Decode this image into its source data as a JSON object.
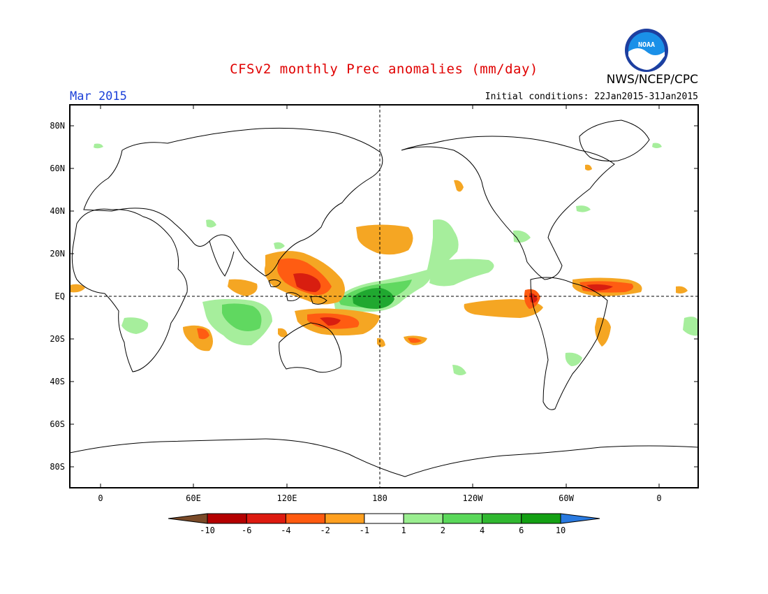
{
  "header": {
    "title": "CFSv2 monthly Prec anomalies (mm/day)",
    "agency": "NWS/NCEP/CPC",
    "logo_text": "NOAA",
    "valid_month": "Mar 2015",
    "initial_conditions": "Initial conditions: 22Jan2015-31Jan2015"
  },
  "map": {
    "lat_ticks": [
      "80N",
      "60N",
      "40N",
      "20N",
      "EQ",
      "20S",
      "40S",
      "60S",
      "80S"
    ],
    "lon_ticks": [
      "0",
      "60E",
      "120E",
      "180",
      "120W",
      "60W",
      "0"
    ],
    "reference_lines": [
      "EQ",
      "180"
    ]
  },
  "colorbar": {
    "labels": [
      "-10",
      "-6",
      "-4",
      "-2",
      "-1",
      "1",
      "2",
      "4",
      "6",
      "10"
    ],
    "colors": [
      "#7a4a28",
      "#b40000",
      "#dd1a10",
      "#ff5a10",
      "#ffa020",
      "#ffffff",
      "#9aee90",
      "#5ad85a",
      "#30b830",
      "#14a014",
      "#2a7ae0"
    ]
  },
  "anomaly_colors": {
    "dry_weak": "#f5a623",
    "dry_mod": "#ff5c12",
    "dry_strong": "#d81e10",
    "wet_weak": "#a6ee9c",
    "wet_mod": "#60d860",
    "wet_strong": "#20a830"
  }
}
